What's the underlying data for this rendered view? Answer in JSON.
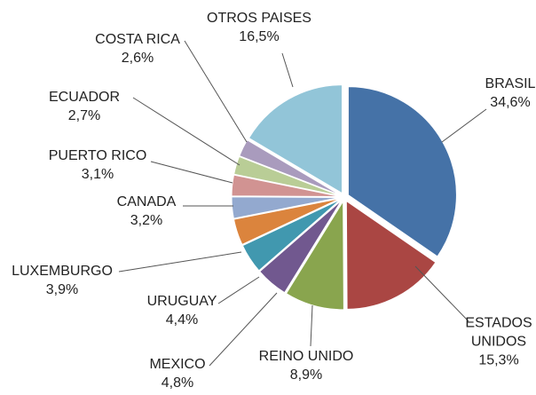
{
  "chart_data": {
    "type": "pie",
    "categories": [
      "BRASIL",
      "ESTADOS UNIDOS",
      "REINO UNIDO",
      "MEXICO",
      "URUGUAY",
      "LUXEMBURGO",
      "CANADA",
      "PUERTO RICO",
      "ECUADOR",
      "COSTA RICA",
      "OTROS PAISES"
    ],
    "values": [
      34.6,
      15.3,
      8.9,
      4.8,
      4.4,
      3.9,
      3.2,
      3.1,
      2.7,
      2.6,
      16.5
    ],
    "value_labels": [
      "34,6%",
      "15,3%",
      "8,9%",
      "4,8%",
      "4,4%",
      "3,9%",
      "3,2%",
      "3,1%",
      "2,7%",
      "2,6%",
      "16,5%"
    ],
    "colors": [
      "#4572a7",
      "#aa4643",
      "#89a54e",
      "#71588f",
      "#4198af",
      "#db843d",
      "#93a9cf",
      "#d19392",
      "#b9cd96",
      "#a99bbd",
      "#92c5d8"
    ]
  }
}
